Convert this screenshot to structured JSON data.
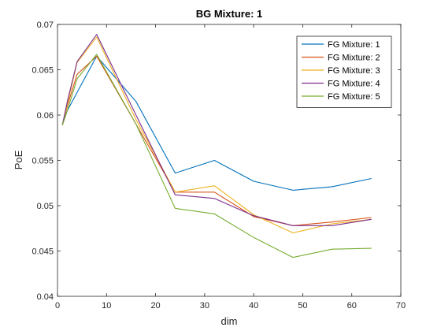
{
  "chart_data": {
    "type": "line",
    "title": "BG Mixture: 1",
    "xlabel": "dim",
    "ylabel": "PoE",
    "xlim": [
      0,
      70
    ],
    "ylim": [
      0.04,
      0.07
    ],
    "xticks": [
      0,
      10,
      20,
      30,
      40,
      50,
      60,
      70
    ],
    "yticks": [
      0.04,
      0.045,
      0.05,
      0.055,
      0.06,
      0.065,
      0.07
    ],
    "xtick_labels": [
      "0",
      "10",
      "20",
      "30",
      "40",
      "50",
      "60",
      "70"
    ],
    "ytick_labels": [
      "0.04",
      "0.045",
      "0.05",
      "0.055",
      "0.06",
      "0.065",
      "0.07"
    ],
    "grid": false,
    "legend_position": "top-right",
    "x": [
      1,
      2,
      4,
      8,
      16,
      24,
      32,
      40,
      48,
      56,
      64
    ],
    "series": [
      {
        "name": "FG Mixture: 1",
        "color": "#0072BD",
        "values": [
          0.0589,
          0.0605,
          0.0625,
          0.0665,
          0.0615,
          0.0536,
          0.055,
          0.0527,
          0.0517,
          0.0521,
          0.053
        ]
      },
      {
        "name": "FG Mixture: 2",
        "color": "#D95319",
        "values": [
          0.0589,
          0.061,
          0.0645,
          0.0665,
          0.059,
          0.0515,
          0.0515,
          0.0488,
          0.0478,
          0.0482,
          0.0487
        ]
      },
      {
        "name": "FG Mixture: 3",
        "color": "#EDB120",
        "values": [
          0.0589,
          0.0612,
          0.0658,
          0.0686,
          0.0595,
          0.0515,
          0.0522,
          0.049,
          0.047,
          0.048,
          0.0485
        ]
      },
      {
        "name": "FG Mixture: 4",
        "color": "#7E2F8E",
        "values": [
          0.0589,
          0.0615,
          0.0659,
          0.0689,
          0.06,
          0.0512,
          0.0508,
          0.0489,
          0.0478,
          0.0478,
          0.0485
        ]
      },
      {
        "name": "FG Mixture: 5",
        "color": "#77AC30",
        "values": [
          0.0589,
          0.0605,
          0.064,
          0.0667,
          0.059,
          0.0497,
          0.0491,
          0.0465,
          0.0443,
          0.0452,
          0.0453
        ]
      }
    ]
  }
}
